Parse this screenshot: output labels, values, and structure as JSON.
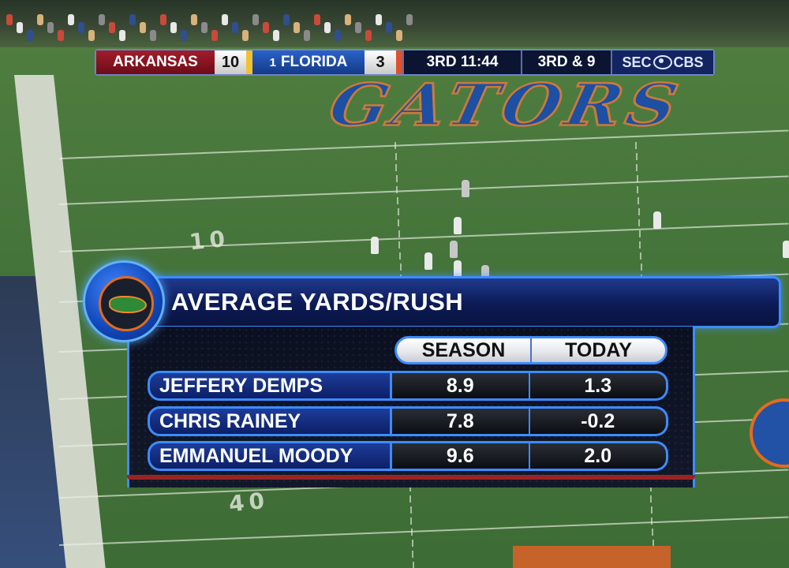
{
  "scorebug": {
    "away_team": "ARKANSAS",
    "away_score": "10",
    "home_rank": "1",
    "home_team": "FLORIDA",
    "home_score": "3",
    "quarter": "3RD",
    "clock": "11:44",
    "down_distance": "3RD & 9",
    "network_left": "SEC",
    "network_right": "CBS",
    "colors": {
      "away": "#a21d2b",
      "home": "#2a62c9",
      "away_accent": "#f2c12e",
      "home_accent": "#e0502a"
    }
  },
  "field": {
    "endzone_text": "GATORS",
    "yard_numbers": [
      "10",
      "40"
    ]
  },
  "stats": {
    "title": "AVERAGE YARDS/RUSH",
    "columns": [
      "SEASON",
      "TODAY"
    ],
    "rows": [
      {
        "name": "JEFFERY DEMPS",
        "season": "8.9",
        "today": "1.3"
      },
      {
        "name": "CHRIS RAINEY",
        "season": "7.8",
        "today": "-0.2"
      },
      {
        "name": "EMMANUEL MOODY",
        "season": "9.6",
        "today": "2.0"
      }
    ],
    "logo_icon": "gator-logo-icon"
  }
}
